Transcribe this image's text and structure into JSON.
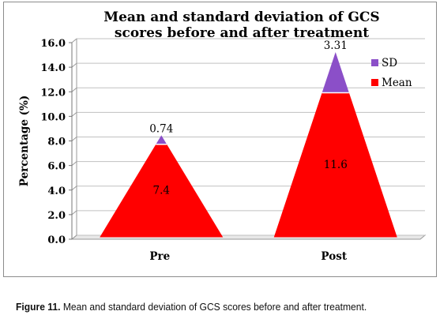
{
  "chart_data": {
    "type": "area",
    "title": [
      "Mean and standard deviation of GCS",
      "scores before and after treatment"
    ],
    "ylabel": "Percentage (%)",
    "xlabel": "",
    "ylim": [
      0,
      16
    ],
    "yticks": [
      "0.0",
      "2.0",
      "4.0",
      "6.0",
      "8.0",
      "10.0",
      "12.0",
      "14.0",
      "16.0"
    ],
    "categories": [
      "Pre",
      "Post"
    ],
    "series": [
      {
        "name": "Mean",
        "color": "#ff0000",
        "values": [
          7.4,
          11.6
        ],
        "labels": [
          "7.4",
          "11.6"
        ]
      },
      {
        "name": "SD",
        "color": "#8b4fc8",
        "values": [
          0.74,
          3.31
        ],
        "labels": [
          "0.74",
          "3.31"
        ]
      }
    ],
    "stacked": true,
    "shape": "triangle",
    "legend_position": "top-right",
    "grid": true
  },
  "caption": {
    "label": "Figure 11.",
    "text": " Mean and standard deviation of GCS scores before and after treatment."
  }
}
